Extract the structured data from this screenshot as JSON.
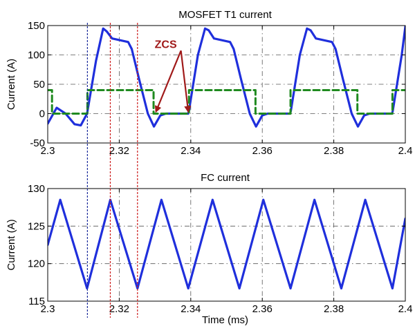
{
  "colors": {
    "current": "#1f2fdc",
    "gate": "#1f8a1f",
    "marker_blue": "#1a2a9a",
    "marker_red": "#cc1a1a",
    "annotation": "#a01a1a",
    "grid": "#555555"
  },
  "chart_data": [
    {
      "type": "line",
      "title": "MOSFET T1 current",
      "xlabel": "",
      "ylabel": "Current (A)",
      "xlim": [
        2.3,
        2.4
      ],
      "ylim": [
        -50,
        150
      ],
      "xticks": [
        "2.3",
        "2.32",
        "2.34",
        "2.36",
        "2.38",
        "2.4"
      ],
      "yticks": [
        "-50",
        "0",
        "50",
        "100",
        "150"
      ],
      "grid": true,
      "series": [
        {
          "style": "solid",
          "x": [
            2.3,
            2.3025,
            2.305,
            2.3075,
            2.30925,
            2.311,
            2.3135,
            2.3155,
            2.3165,
            2.318,
            2.3225,
            2.3235,
            2.3255,
            2.328,
            2.3297,
            2.3315,
            2.333,
            2.3393,
            2.3395,
            2.342,
            2.344,
            2.345,
            2.3465,
            2.351,
            2.352,
            2.354,
            2.3565,
            2.35825,
            2.36,
            2.3615,
            2.3678,
            2.368,
            2.3705,
            2.3725,
            2.3735,
            2.375,
            2.3795,
            2.3805,
            2.3825,
            2.385,
            2.38675,
            2.3885,
            2.39,
            2.3963,
            2.3965,
            2.399,
            2.4
          ],
          "y": [
            -17,
            10,
            0,
            -18,
            -20,
            0,
            90,
            145,
            140,
            128,
            122,
            110,
            60,
            0,
            -22,
            -3,
            0,
            0,
            5,
            100,
            145,
            142,
            128,
            122,
            110,
            60,
            0,
            -22,
            -3,
            0,
            0,
            5,
            100,
            145,
            142,
            128,
            122,
            110,
            60,
            0,
            -22,
            -3,
            0,
            0,
            5,
            100,
            148
          ]
        },
        {
          "style": "dashed",
          "x": [
            2.3,
            2.3012,
            2.3012,
            2.3111,
            2.3111,
            2.3296,
            2.3296,
            2.3395,
            2.3395,
            2.3581,
            2.3581,
            2.3679,
            2.3679,
            2.3866,
            2.3866,
            2.3964,
            2.3964,
            2.4
          ],
          "y": [
            40,
            40,
            0,
            0,
            40,
            40,
            0,
            0,
            40,
            40,
            0,
            0,
            40,
            40,
            0,
            0,
            40,
            40
          ]
        }
      ],
      "annotations": [
        {
          "text": "ZCS",
          "x": 2.333,
          "y": 112
        }
      ]
    },
    {
      "type": "line",
      "title": "FC current",
      "xlabel": "Time (ms)",
      "ylabel": "Current (A)",
      "xlim": [
        2.3,
        2.4
      ],
      "ylim": [
        115,
        130
      ],
      "xticks": [
        "2.3",
        "2.32",
        "2.34",
        "2.36",
        "2.38",
        "2.4"
      ],
      "yticks": [
        "115",
        "120",
        "125",
        "130"
      ],
      "grid": true,
      "series": [
        {
          "style": "solid",
          "x": [
            2.3,
            2.3035,
            2.311,
            2.3175,
            2.3251,
            2.3318,
            2.3393,
            2.3461,
            2.3536,
            2.3603,
            2.3679,
            2.3746,
            2.3821,
            2.3888,
            2.3964,
            2.4
          ],
          "y": [
            122.5,
            128.5,
            116.7,
            128.5,
            116.7,
            128.5,
            116.7,
            128.5,
            116.7,
            128.5,
            116.7,
            128.5,
            116.7,
            128.5,
            116.7,
            126
          ]
        }
      ]
    }
  ]
}
